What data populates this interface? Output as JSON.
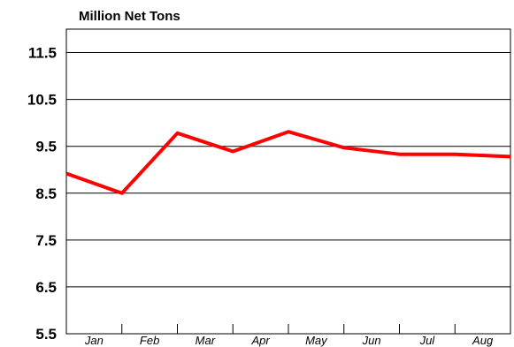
{
  "chart_data": {
    "type": "line",
    "title": "Million Net Tons",
    "categories": [
      "Jan",
      "Feb",
      "Mar",
      "Apr",
      "May",
      "Jun",
      "Jul",
      "Aug"
    ],
    "x_boundary_values": [
      8.92,
      8.5,
      9.78,
      9.39,
      9.81,
      9.47,
      9.33,
      9.33,
      9.28
    ],
    "ylim": [
      5.5,
      12.0
    ],
    "yticks": [
      "5.5",
      "6.5",
      "7.5",
      "8.5",
      "9.5",
      "10.5",
      "11.5"
    ],
    "ytick_values": [
      5.5,
      6.5,
      7.5,
      8.5,
      9.5,
      10.5,
      11.5
    ],
    "grid": true,
    "legend": "none",
    "line_color": "#ff0000"
  }
}
